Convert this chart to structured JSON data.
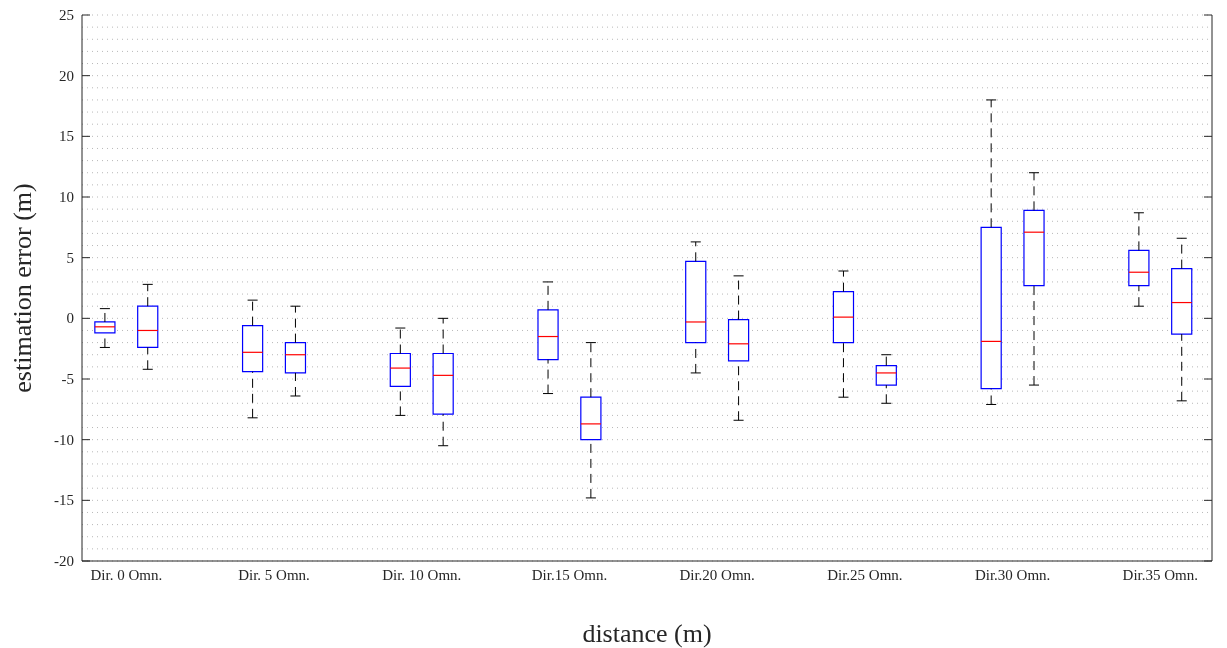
{
  "chart_data": {
    "type": "box",
    "xlabel": "distance (m)",
    "ylabel": "estimation error (m)",
    "categories": [
      "Dir. 0 Omn.",
      "Dir. 5  Omn.",
      "Dir. 10 Omn.",
      "Dir.15 Omn.",
      "Dir.20 Omn.",
      "Dir.25 Omn.",
      "Dir.30 Omn.",
      "Dir.35 Omn."
    ],
    "ylim": [
      -20,
      25
    ],
    "yticks": [
      -20,
      {
        "value": -19,
        "label": null
      },
      {
        "value": -18,
        "label": null
      },
      {
        "value": -17,
        "label": null
      },
      {
        "value": -16,
        "label": null
      },
      -15,
      {
        "value": -14,
        "label": null
      },
      {
        "value": -13,
        "label": null
      },
      {
        "value": -12,
        "label": null
      },
      {
        "value": -11,
        "label": null
      },
      -10,
      {
        "value": -9,
        "label": null
      },
      {
        "value": -8,
        "label": null
      },
      {
        "value": -7,
        "label": null
      },
      {
        "value": -6,
        "label": null
      },
      -5,
      {
        "value": -4,
        "label": null
      },
      {
        "value": -3,
        "label": null
      },
      {
        "value": -2,
        "label": null
      },
      {
        "value": -1,
        "label": null
      },
      0,
      {
        "value": 1,
        "label": null
      },
      {
        "value": 2,
        "label": null
      },
      {
        "value": 3,
        "label": null
      },
      {
        "value": 4,
        "label": null
      },
      5,
      {
        "value": 6,
        "label": null
      },
      {
        "value": 7,
        "label": null
      },
      {
        "value": 8,
        "label": null
      },
      {
        "value": 9,
        "label": null
      },
      10,
      {
        "value": 11,
        "label": null
      },
      {
        "value": 12,
        "label": null
      },
      {
        "value": 13,
        "label": null
      },
      {
        "value": 14,
        "label": null
      },
      15,
      {
        "value": 16,
        "label": null
      },
      {
        "value": 17,
        "label": null
      },
      {
        "value": 18,
        "label": null
      },
      {
        "value": 19,
        "label": null
      },
      20,
      {
        "value": 21,
        "label": null
      },
      {
        "value": 22,
        "label": null
      },
      {
        "value": 23,
        "label": null
      },
      {
        "value": 24,
        "label": null
      },
      25
    ],
    "grid": "y",
    "series": [
      {
        "color": "#0000ff",
        "boxes": [
          {
            "low": -2.4,
            "q1": -1.2,
            "median": -0.7,
            "q3": -0.3,
            "high": 0.8
          },
          {
            "low": -8.2,
            "q1": -4.4,
            "median": -2.8,
            "q3": -0.6,
            "high": 1.5
          },
          {
            "low": -8.0,
            "q1": -5.6,
            "median": -4.1,
            "q3": -2.9,
            "high": -0.8
          },
          {
            "low": -6.2,
            "q1": -3.4,
            "median": -1.5,
            "q3": 0.7,
            "high": 3.0
          },
          {
            "low": -4.5,
            "q1": -2.0,
            "median": -0.3,
            "q3": 4.7,
            "high": 6.3
          },
          {
            "low": -6.5,
            "q1": -2.0,
            "median": 0.1,
            "q3": 2.2,
            "high": 3.9
          },
          {
            "low": -7.1,
            "q1": -5.8,
            "median": -1.9,
            "q3": 7.5,
            "high": 18.0
          },
          {
            "low": 1.0,
            "q1": 2.7,
            "median": 3.8,
            "q3": 5.6,
            "high": 8.7
          }
        ]
      },
      {
        "color": "#0000ff",
        "boxes": [
          {
            "low": -4.2,
            "q1": -2.4,
            "median": -1.0,
            "q3": 1.0,
            "high": 2.8
          },
          {
            "low": -6.4,
            "q1": -4.5,
            "median": -3.0,
            "q3": -2.0,
            "high": 1.0
          },
          {
            "low": -10.5,
            "q1": -7.9,
            "median": -4.7,
            "q3": -2.9,
            "high": 0.0
          },
          {
            "low": -14.8,
            "q1": -10.0,
            "median": -8.7,
            "q3": -6.5,
            "high": -2.0
          },
          {
            "low": -8.4,
            "q1": -3.5,
            "median": -2.1,
            "q3": -0.1,
            "high": 3.5
          },
          {
            "low": -7.0,
            "q1": -5.5,
            "median": -4.5,
            "q3": -3.9,
            "high": -3.0
          },
          {
            "low": -5.5,
            "q1": 2.7,
            "median": 7.1,
            "q3": 8.9,
            "high": 12.0
          },
          {
            "low": -6.8,
            "q1": -1.3,
            "median": 1.3,
            "q3": 4.1,
            "high": 6.6
          }
        ]
      }
    ]
  }
}
